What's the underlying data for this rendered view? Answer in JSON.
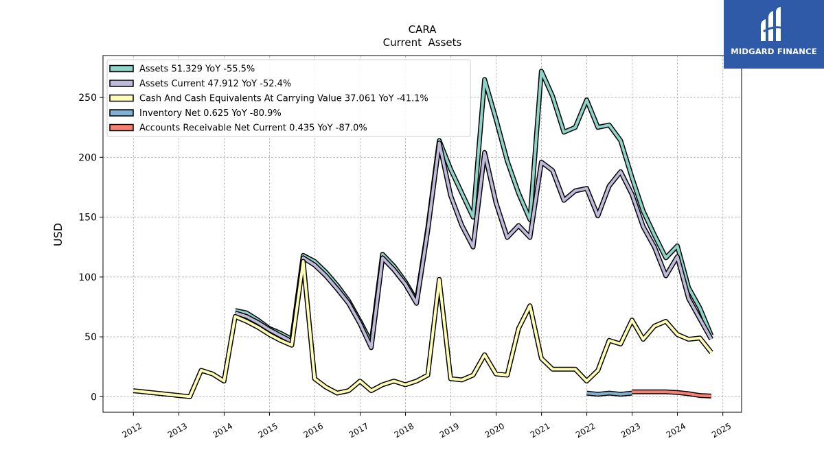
{
  "chart_data": {
    "type": "line",
    "title": "CARA",
    "subtitle": "Current  Assets",
    "ylabel": "USD",
    "xlabel": "",
    "xlim": [
      "2011-05-01",
      "2025-06-01"
    ],
    "ylim": [
      -13,
      285
    ],
    "yticks": [
      0,
      50,
      100,
      150,
      200,
      250
    ],
    "xticks": [
      "2012",
      "2013",
      "2014",
      "2015",
      "2016",
      "2017",
      "2018",
      "2019",
      "2020",
      "2021",
      "2022",
      "2023",
      "2024",
      "2025"
    ],
    "grid": true,
    "legend_position": "top-left",
    "series": [
      {
        "name": "Assets  51.329 YoY -55.5%",
        "color": "#8dd3c7",
        "points": [
          [
            "2014-03-31",
            72
          ],
          [
            "2014-06-30",
            70
          ],
          [
            "2014-09-30",
            64
          ],
          [
            "2014-12-31",
            57
          ],
          [
            "2015-03-31",
            53
          ],
          [
            "2015-06-30",
            48
          ],
          [
            "2015-09-30",
            118
          ],
          [
            "2015-12-31",
            113
          ],
          [
            "2016-03-31",
            104
          ],
          [
            "2016-06-30",
            93
          ],
          [
            "2016-09-30",
            80
          ],
          [
            "2016-12-31",
            63
          ],
          [
            "2017-03-31",
            45
          ],
          [
            "2017-06-30",
            119
          ],
          [
            "2017-09-30",
            109
          ],
          [
            "2017-12-31",
            96
          ],
          [
            "2018-03-31",
            80
          ],
          [
            "2018-06-30",
            141
          ],
          [
            "2018-09-30",
            214
          ],
          [
            "2018-12-31",
            190
          ],
          [
            "2019-03-31",
            170
          ],
          [
            "2019-06-30",
            150
          ],
          [
            "2019-09-30",
            265
          ],
          [
            "2019-12-31",
            232
          ],
          [
            "2020-03-31",
            197
          ],
          [
            "2020-06-30",
            170
          ],
          [
            "2020-09-30",
            148
          ],
          [
            "2020-12-31",
            272
          ],
          [
            "2021-03-31",
            251
          ],
          [
            "2021-06-30",
            221
          ],
          [
            "2021-09-30",
            225
          ],
          [
            "2021-12-31",
            248
          ],
          [
            "2022-03-31",
            225
          ],
          [
            "2022-06-30",
            227
          ],
          [
            "2022-09-30",
            214
          ],
          [
            "2022-12-31",
            183
          ],
          [
            "2023-03-31",
            155
          ],
          [
            "2023-06-30",
            135
          ],
          [
            "2023-09-30",
            116
          ],
          [
            "2023-12-31",
            126
          ],
          [
            "2024-03-31",
            91
          ],
          [
            "2024-06-30",
            74
          ],
          [
            "2024-09-30",
            51
          ]
        ]
      },
      {
        "name": "Assets Current  47.912 YoY -52.4%",
        "color": "#bebada",
        "points": [
          [
            "2014-03-31",
            70
          ],
          [
            "2014-06-30",
            67
          ],
          [
            "2014-09-30",
            62
          ],
          [
            "2014-12-31",
            56
          ],
          [
            "2015-03-31",
            51
          ],
          [
            "2015-06-30",
            46
          ],
          [
            "2015-09-30",
            116
          ],
          [
            "2015-12-31",
            110
          ],
          [
            "2016-03-31",
            101
          ],
          [
            "2016-06-30",
            90
          ],
          [
            "2016-09-30",
            78
          ],
          [
            "2016-12-31",
            61
          ],
          [
            "2017-03-31",
            41
          ],
          [
            "2017-06-30",
            116
          ],
          [
            "2017-09-30",
            106
          ],
          [
            "2017-12-31",
            94
          ],
          [
            "2018-03-31",
            78
          ],
          [
            "2018-06-30",
            139
          ],
          [
            "2018-09-30",
            212
          ],
          [
            "2018-12-31",
            168
          ],
          [
            "2019-03-31",
            143
          ],
          [
            "2019-06-30",
            125
          ],
          [
            "2019-09-30",
            204
          ],
          [
            "2019-12-31",
            162
          ],
          [
            "2020-03-31",
            133
          ],
          [
            "2020-06-30",
            143
          ],
          [
            "2020-09-30",
            133
          ],
          [
            "2020-12-31",
            196
          ],
          [
            "2021-03-31",
            189
          ],
          [
            "2021-06-30",
            164
          ],
          [
            "2021-09-30",
            172
          ],
          [
            "2021-12-31",
            174
          ],
          [
            "2022-03-31",
            151
          ],
          [
            "2022-06-30",
            176
          ],
          [
            "2022-09-30",
            188
          ],
          [
            "2022-12-31",
            169
          ],
          [
            "2023-03-31",
            142
          ],
          [
            "2023-06-30",
            125
          ],
          [
            "2023-09-30",
            101
          ],
          [
            "2023-12-31",
            117
          ],
          [
            "2024-03-31",
            82
          ],
          [
            "2024-06-30",
            65
          ],
          [
            "2024-09-30",
            48
          ]
        ]
      },
      {
        "name": "Cash And Cash Equivalents At Carrying Value  37.061 YoY -41.1%",
        "color": "#ffffb3",
        "points": [
          [
            "2011-12-31",
            5
          ],
          [
            "2012-12-31",
            1
          ],
          [
            "2013-03-31",
            0
          ],
          [
            "2013-06-30",
            22
          ],
          [
            "2013-09-30",
            19
          ],
          [
            "2013-12-31",
            13
          ],
          [
            "2014-03-31",
            67
          ],
          [
            "2014-06-30",
            63
          ],
          [
            "2014-09-30",
            58
          ],
          [
            "2014-12-31",
            52
          ],
          [
            "2015-03-31",
            47
          ],
          [
            "2015-06-30",
            43
          ],
          [
            "2015-09-30",
            113
          ],
          [
            "2015-12-31",
            15
          ],
          [
            "2016-03-31",
            8
          ],
          [
            "2016-06-30",
            3
          ],
          [
            "2016-09-30",
            5
          ],
          [
            "2016-12-31",
            13
          ],
          [
            "2017-03-31",
            5
          ],
          [
            "2017-06-30",
            10
          ],
          [
            "2017-09-30",
            13
          ],
          [
            "2017-12-31",
            10
          ],
          [
            "2018-03-31",
            13
          ],
          [
            "2018-06-30",
            18
          ],
          [
            "2018-09-30",
            98
          ],
          [
            "2018-12-31",
            15
          ],
          [
            "2019-03-31",
            14
          ],
          [
            "2019-06-30",
            18
          ],
          [
            "2019-09-30",
            35
          ],
          [
            "2019-12-31",
            19
          ],
          [
            "2020-03-31",
            18
          ],
          [
            "2020-06-30",
            57
          ],
          [
            "2020-09-30",
            76
          ],
          [
            "2020-12-31",
            32
          ],
          [
            "2021-03-31",
            23
          ],
          [
            "2021-06-30",
            23
          ],
          [
            "2021-09-30",
            23
          ],
          [
            "2021-12-31",
            13
          ],
          [
            "2022-03-31",
            22
          ],
          [
            "2022-06-30",
            47
          ],
          [
            "2022-09-30",
            44
          ],
          [
            "2022-12-31",
            64
          ],
          [
            "2023-03-31",
            48
          ],
          [
            "2023-06-30",
            59
          ],
          [
            "2023-09-30",
            63
          ],
          [
            "2023-12-31",
            52
          ],
          [
            "2024-03-31",
            48
          ],
          [
            "2024-06-30",
            49
          ],
          [
            "2024-09-30",
            37
          ]
        ]
      },
      {
        "name": "Inventory Net  0.625 YoY -80.9%",
        "color": "#80b1d3",
        "points": [
          [
            "2021-12-31",
            3
          ],
          [
            "2022-03-31",
            2
          ],
          [
            "2022-06-30",
            3
          ],
          [
            "2022-09-30",
            2
          ],
          [
            "2022-12-31",
            3
          ]
        ]
      },
      {
        "name": "Accounts Receivable Net Current  0.435 YoY -87.0%",
        "color": "#fb8072",
        "points": [
          [
            "2022-12-31",
            4
          ],
          [
            "2023-03-31",
            4
          ],
          [
            "2023-06-30",
            4
          ],
          [
            "2023-09-30",
            4
          ],
          [
            "2023-12-31",
            3.5
          ],
          [
            "2024-03-31",
            2.5
          ],
          [
            "2024-06-30",
            1
          ],
          [
            "2024-09-30",
            0.5
          ]
        ]
      }
    ]
  },
  "logo": {
    "text": "MIDGARD FINANCE",
    "color": "#2f5aa8"
  }
}
